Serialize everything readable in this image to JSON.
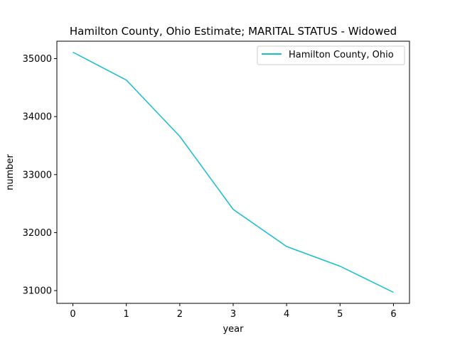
{
  "chart_data": {
    "type": "line",
    "title": "Hamilton County, Ohio Estimate; MARITAL STATUS - Widowed",
    "xlabel": "year",
    "ylabel": "number",
    "x": [
      0,
      1,
      2,
      3,
      4,
      5,
      6
    ],
    "series": [
      {
        "name": "Hamilton County, Ohio",
        "values": [
          35110,
          34630,
          33660,
          32400,
          31760,
          31420,
          30970
        ],
        "color": "#17becf"
      }
    ],
    "xticks": [
      0,
      1,
      2,
      3,
      4,
      5,
      6
    ],
    "yticks": [
      31000,
      32000,
      33000,
      34000,
      35000
    ],
    "xlim": [
      -0.3,
      6.3
    ],
    "ylim": [
      30780,
      35300
    ],
    "grid": false,
    "legend_position": "top-right"
  }
}
